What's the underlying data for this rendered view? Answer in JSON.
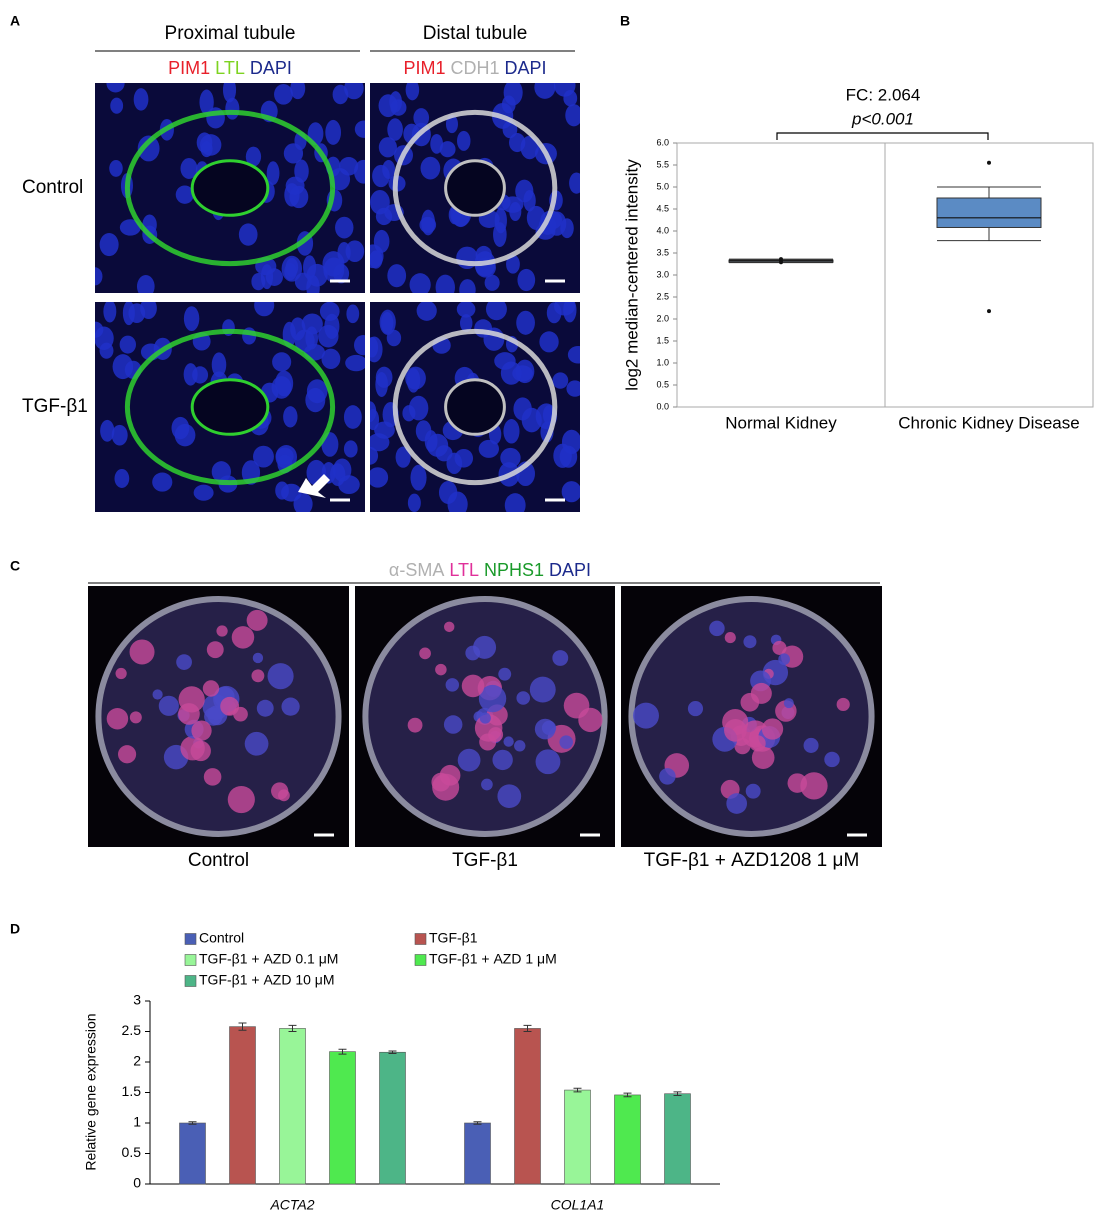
{
  "panel_a": {
    "label": "A",
    "columns": [
      {
        "title": "Proximal tubule",
        "stains": [
          {
            "text": "PIM1",
            "color": "#e8202a"
          },
          {
            "text": "LTL",
            "color": "#7ed321"
          },
          {
            "text": "DAPI",
            "color": "#1c2a8c"
          }
        ]
      },
      {
        "title": "Distal tubule",
        "stains": [
          {
            "text": "PIM1",
            "color": "#e8202a"
          },
          {
            "text": "CDH1",
            "color": "#b0b0b0"
          },
          {
            "text": "DAPI",
            "color": "#1c2a8c"
          }
        ]
      }
    ],
    "rows": [
      "Control",
      "TGF-β1"
    ]
  },
  "panel_b": {
    "label": "B"
  },
  "panel_c": {
    "label": "C",
    "stains": [
      {
        "text": "α-SMA",
        "color": "#b0b0b0"
      },
      {
        "text": "LTL",
        "color": "#e0309a"
      },
      {
        "text": "NPHS1",
        "color": "#1a9a2a"
      },
      {
        "text": "DAPI",
        "color": "#1c2a8c"
      }
    ],
    "captions": [
      "Control",
      "TGF-β1",
      "TGF-β1 + AZD1208 1 μM"
    ]
  },
  "panel_d": {
    "label": "D"
  },
  "chart_data": [
    {
      "type": "box",
      "y_label": "log2 median-centered intensity",
      "annotations": [
        "FC: 2.064",
        "p<0.001"
      ],
      "categories": [
        "Normal Kidney",
        "Chronic Kidney Disease"
      ],
      "boxes": [
        {
          "whislo": 3.28,
          "q1": 3.29,
          "med": 3.32,
          "q3": 3.34,
          "whishi": 3.36,
          "fliers": [
            3.36,
            3.29
          ],
          "color": "#b4c2d6"
        },
        {
          "whislo": 3.78,
          "q1": 4.08,
          "med": 4.3,
          "q3": 4.75,
          "whishi": 5.0,
          "fliers": [
            5.55,
            2.18
          ],
          "color": "#5b8bc4"
        }
      ],
      "ylim": [
        0,
        6
      ],
      "yticks": [
        {
          "value": 0,
          "label": "0.0"
        },
        0.5,
        {
          "value": 1,
          "label": "1.0"
        },
        1.5,
        {
          "value": 2,
          "label": "2.0"
        },
        2.5,
        {
          "value": 3,
          "label": "3.0"
        },
        3.5,
        {
          "value": 4,
          "label": "4.0"
        },
        4.5,
        {
          "value": 5,
          "label": "5.0"
        },
        5.5,
        {
          "value": 6,
          "label": "6.0"
        }
      ]
    },
    {
      "type": "bar",
      "y_label": "Relative gene expression",
      "categories": [
        "ACTA2",
        "COL1A1"
      ],
      "series": [
        {
          "name": "Control",
          "color": "#4a5fb5",
          "values": [
            1.0,
            1.0
          ],
          "errors": [
            0.02,
            0.02
          ]
        },
        {
          "name": "TGF-β1",
          "color": "#b85450",
          "values": [
            2.58,
            2.55
          ],
          "errors": [
            0.06,
            0.05
          ]
        },
        {
          "name": "TGF-β1 + AZD 0.1 μM",
          "color": "#98f598",
          "values": [
            2.55,
            1.54
          ],
          "errors": [
            0.05,
            0.03
          ]
        },
        {
          "name": "TGF-β1 + AZD 1 μM",
          "color": "#4fe94f",
          "values": [
            2.17,
            1.46
          ],
          "errors": [
            0.04,
            0.03
          ]
        },
        {
          "name": "TGF-β1 + AZD 10 μM",
          "color": "#4db587",
          "values": [
            2.16,
            1.48
          ],
          "errors": [
            0.02,
            0.03
          ]
        }
      ],
      "ylim": [
        0,
        3
      ],
      "yticks": [
        0,
        0.5,
        1,
        1.5,
        2,
        2.5,
        3
      ]
    }
  ]
}
